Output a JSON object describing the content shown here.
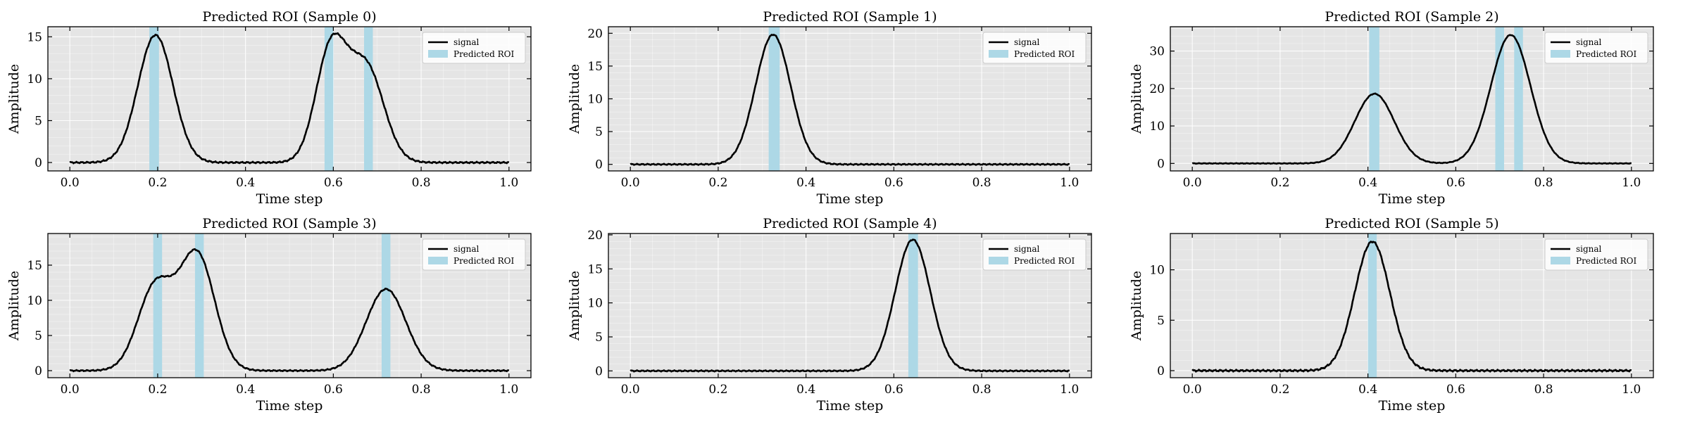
{
  "figure": {
    "ylabel": "Amplitude",
    "xlabel": "Time step",
    "legend_signal": "signal",
    "legend_roi": "Predicted ROI",
    "colors": {
      "signal": "#000000",
      "roi": "#add8e6",
      "plot_bg": "#e5e5e5",
      "grid": "#ffffff"
    }
  },
  "chart_data": [
    {
      "type": "line",
      "title": "Predicted ROI (Sample 0)",
      "xlabel": "Time step",
      "ylabel": "Amplitude",
      "xlim": [
        -0.05,
        1.05
      ],
      "ylim": [
        -1,
        16.2
      ],
      "xticks": [
        "0.0",
        "0.2",
        "0.4",
        "0.6",
        "0.8",
        "1.0"
      ],
      "xtick_values": [
        0,
        0.2,
        0.4,
        0.6,
        0.8,
        1.0
      ],
      "yticks": [
        "0",
        "5",
        "10",
        "15"
      ],
      "ytick_values": [
        0,
        5,
        10,
        15
      ],
      "peaks": [
        {
          "center": 0.195,
          "amp": 15.2,
          "width": 0.04
        },
        {
          "center": 0.595,
          "amp": 13.5,
          "width": 0.035
        },
        {
          "center": 0.675,
          "amp": 11.3,
          "width": 0.04
        }
      ],
      "roi": [
        [
          0.181,
          0.203
        ],
        [
          0.58,
          0.6
        ],
        [
          0.67,
          0.69
        ]
      ],
      "legend": "top-right",
      "grid": true
    },
    {
      "type": "line",
      "title": "Predicted ROI (Sample 1)",
      "xlabel": "Time step",
      "ylabel": "Amplitude",
      "xlim": [
        -0.05,
        1.05
      ],
      "ylim": [
        -1,
        21
      ],
      "xticks": [
        "0.0",
        "0.2",
        "0.4",
        "0.6",
        "0.8",
        "1.0"
      ],
      "xtick_values": [
        0,
        0.2,
        0.4,
        0.6,
        0.8,
        1.0
      ],
      "yticks": [
        "0",
        "5",
        "10",
        "15",
        "20"
      ],
      "ytick_values": [
        0,
        5,
        10,
        15,
        20
      ],
      "peaks": [
        {
          "center": 0.325,
          "amp": 19.8,
          "width": 0.04
        }
      ],
      "roi": [
        [
          0.315,
          0.34
        ]
      ],
      "legend": "top-right",
      "grid": true
    },
    {
      "type": "line",
      "title": "Predicted ROI (Sample 2)",
      "xlabel": "Time step",
      "ylabel": "Amplitude",
      "xlim": [
        -0.05,
        1.05
      ],
      "ylim": [
        -2,
        36.5
      ],
      "xticks": [
        "0.0",
        "0.2",
        "0.4",
        "0.6",
        "0.8",
        "1.0"
      ],
      "xtick_values": [
        0,
        0.2,
        0.4,
        0.6,
        0.8,
        1.0
      ],
      "yticks": [
        "0",
        "10",
        "20",
        "30"
      ],
      "ytick_values": [
        0,
        10,
        20,
        30
      ],
      "peaks": [
        {
          "center": 0.415,
          "amp": 18.6,
          "width": 0.045
        },
        {
          "center": 0.725,
          "amp": 34.3,
          "width": 0.045
        }
      ],
      "roi": [
        [
          0.403,
          0.426
        ],
        [
          0.69,
          0.71
        ],
        [
          0.733,
          0.753
        ]
      ],
      "legend": "top-right",
      "grid": true
    },
    {
      "type": "line",
      "title": "Predicted ROI (Sample 3)",
      "xlabel": "Time step",
      "ylabel": "Amplitude",
      "xlim": [
        -0.05,
        1.05
      ],
      "ylim": [
        -1,
        19.5
      ],
      "xticks": [
        "0.0",
        "0.2",
        "0.4",
        "0.6",
        "0.8",
        "1.0"
      ],
      "xtick_values": [
        0,
        0.2,
        0.4,
        0.6,
        0.8,
        1.0
      ],
      "yticks": [
        "0",
        "5",
        "10",
        "15"
      ],
      "ytick_values": [
        0,
        5,
        10,
        15
      ],
      "peaks": [
        {
          "center": 0.195,
          "amp": 12.0,
          "width": 0.04
        },
        {
          "center": 0.29,
          "amp": 16.4,
          "width": 0.04
        },
        {
          "center": 0.72,
          "amp": 11.6,
          "width": 0.045
        }
      ],
      "roi": [
        [
          0.19,
          0.21
        ],
        [
          0.285,
          0.305
        ],
        [
          0.71,
          0.73
        ]
      ],
      "legend": "top-right",
      "grid": true
    },
    {
      "type": "line",
      "title": "Predicted ROI (Sample 4)",
      "xlabel": "Time step",
      "ylabel": "Amplitude",
      "xlim": [
        -0.05,
        1.05
      ],
      "ylim": [
        -1,
        20.2
      ],
      "xticks": [
        "0.0",
        "0.2",
        "0.4",
        "0.6",
        "0.8",
        "1.0"
      ],
      "xtick_values": [
        0,
        0.2,
        0.4,
        0.6,
        0.8,
        1.0
      ],
      "yticks": [
        "0",
        "5",
        "10",
        "15",
        "20"
      ],
      "ytick_values": [
        0,
        5,
        10,
        15,
        20
      ],
      "peaks": [
        {
          "center": 0.643,
          "amp": 19.3,
          "width": 0.04
        }
      ],
      "roi": [
        [
          0.633,
          0.655
        ]
      ],
      "legend": "top-right",
      "grid": true
    },
    {
      "type": "line",
      "title": "Predicted ROI (Sample 5)",
      "xlabel": "Time step",
      "ylabel": "Amplitude",
      "xlim": [
        -0.05,
        1.05
      ],
      "ylim": [
        -0.7,
        13.6
      ],
      "xticks": [
        "0.0",
        "0.2",
        "0.4",
        "0.6",
        "0.8",
        "1.0"
      ],
      "xtick_values": [
        0,
        0.2,
        0.4,
        0.6,
        0.8,
        1.0
      ],
      "yticks": [
        "0",
        "5",
        "10"
      ],
      "ytick_values": [
        0,
        5,
        10
      ],
      "peaks": [
        {
          "center": 0.41,
          "amp": 12.8,
          "width": 0.04
        }
      ],
      "roi": [
        [
          0.4,
          0.42
        ]
      ],
      "legend": "top-right",
      "grid": true
    }
  ]
}
